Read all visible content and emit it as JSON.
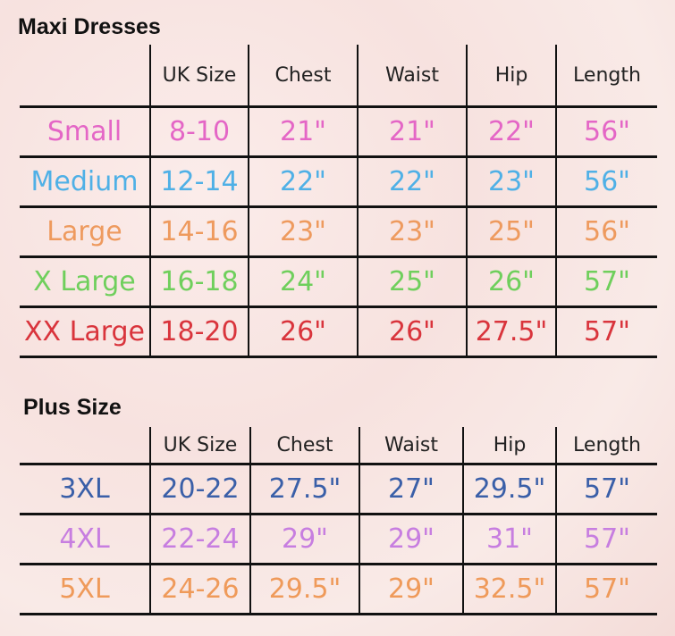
{
  "maxi": {
    "title": "Maxi Dresses",
    "headers": [
      "",
      "UK Size",
      "Chest",
      "Waist",
      "Hip",
      "Length"
    ],
    "rows": [
      {
        "color": "#e466c6",
        "cells": [
          "Small",
          "8-10",
          "21\"",
          "21\"",
          "22\"",
          "56\""
        ]
      },
      {
        "color": "#4fb0e6",
        "cells": [
          "Medium",
          "12-14",
          "22\"",
          "22\"",
          "23\"",
          "56\""
        ]
      },
      {
        "color": "#ee9a5e",
        "cells": [
          "Large",
          "14-16",
          "23\"",
          "23\"",
          "25\"",
          "56\""
        ]
      },
      {
        "color": "#6fcf5c",
        "cells": [
          "X Large",
          "16-18",
          "24\"",
          "25\"",
          "26\"",
          "57\""
        ]
      },
      {
        "color": "#d9343c",
        "cells": [
          "XX Large",
          "18-20",
          "26\"",
          "26\"",
          "27.5\"",
          "57\""
        ]
      }
    ]
  },
  "plus": {
    "title": "Plus Size",
    "headers": [
      "",
      "UK Size",
      "Chest",
      "Waist",
      "Hip",
      "Length"
    ],
    "rows": [
      {
        "color": "#3a5fa8",
        "cells": [
          "3XL",
          "20-22",
          "27.5\"",
          "27\"",
          "29.5\"",
          "57\""
        ]
      },
      {
        "color": "#c77ee0",
        "cells": [
          "4XL",
          "22-24",
          "29\"",
          "29\"",
          "31\"",
          "57\""
        ]
      },
      {
        "color": "#ef9a5a",
        "cells": [
          "5XL",
          "24-26",
          "29.5\"",
          "29\"",
          "32.5\"",
          "57\""
        ]
      }
    ]
  }
}
